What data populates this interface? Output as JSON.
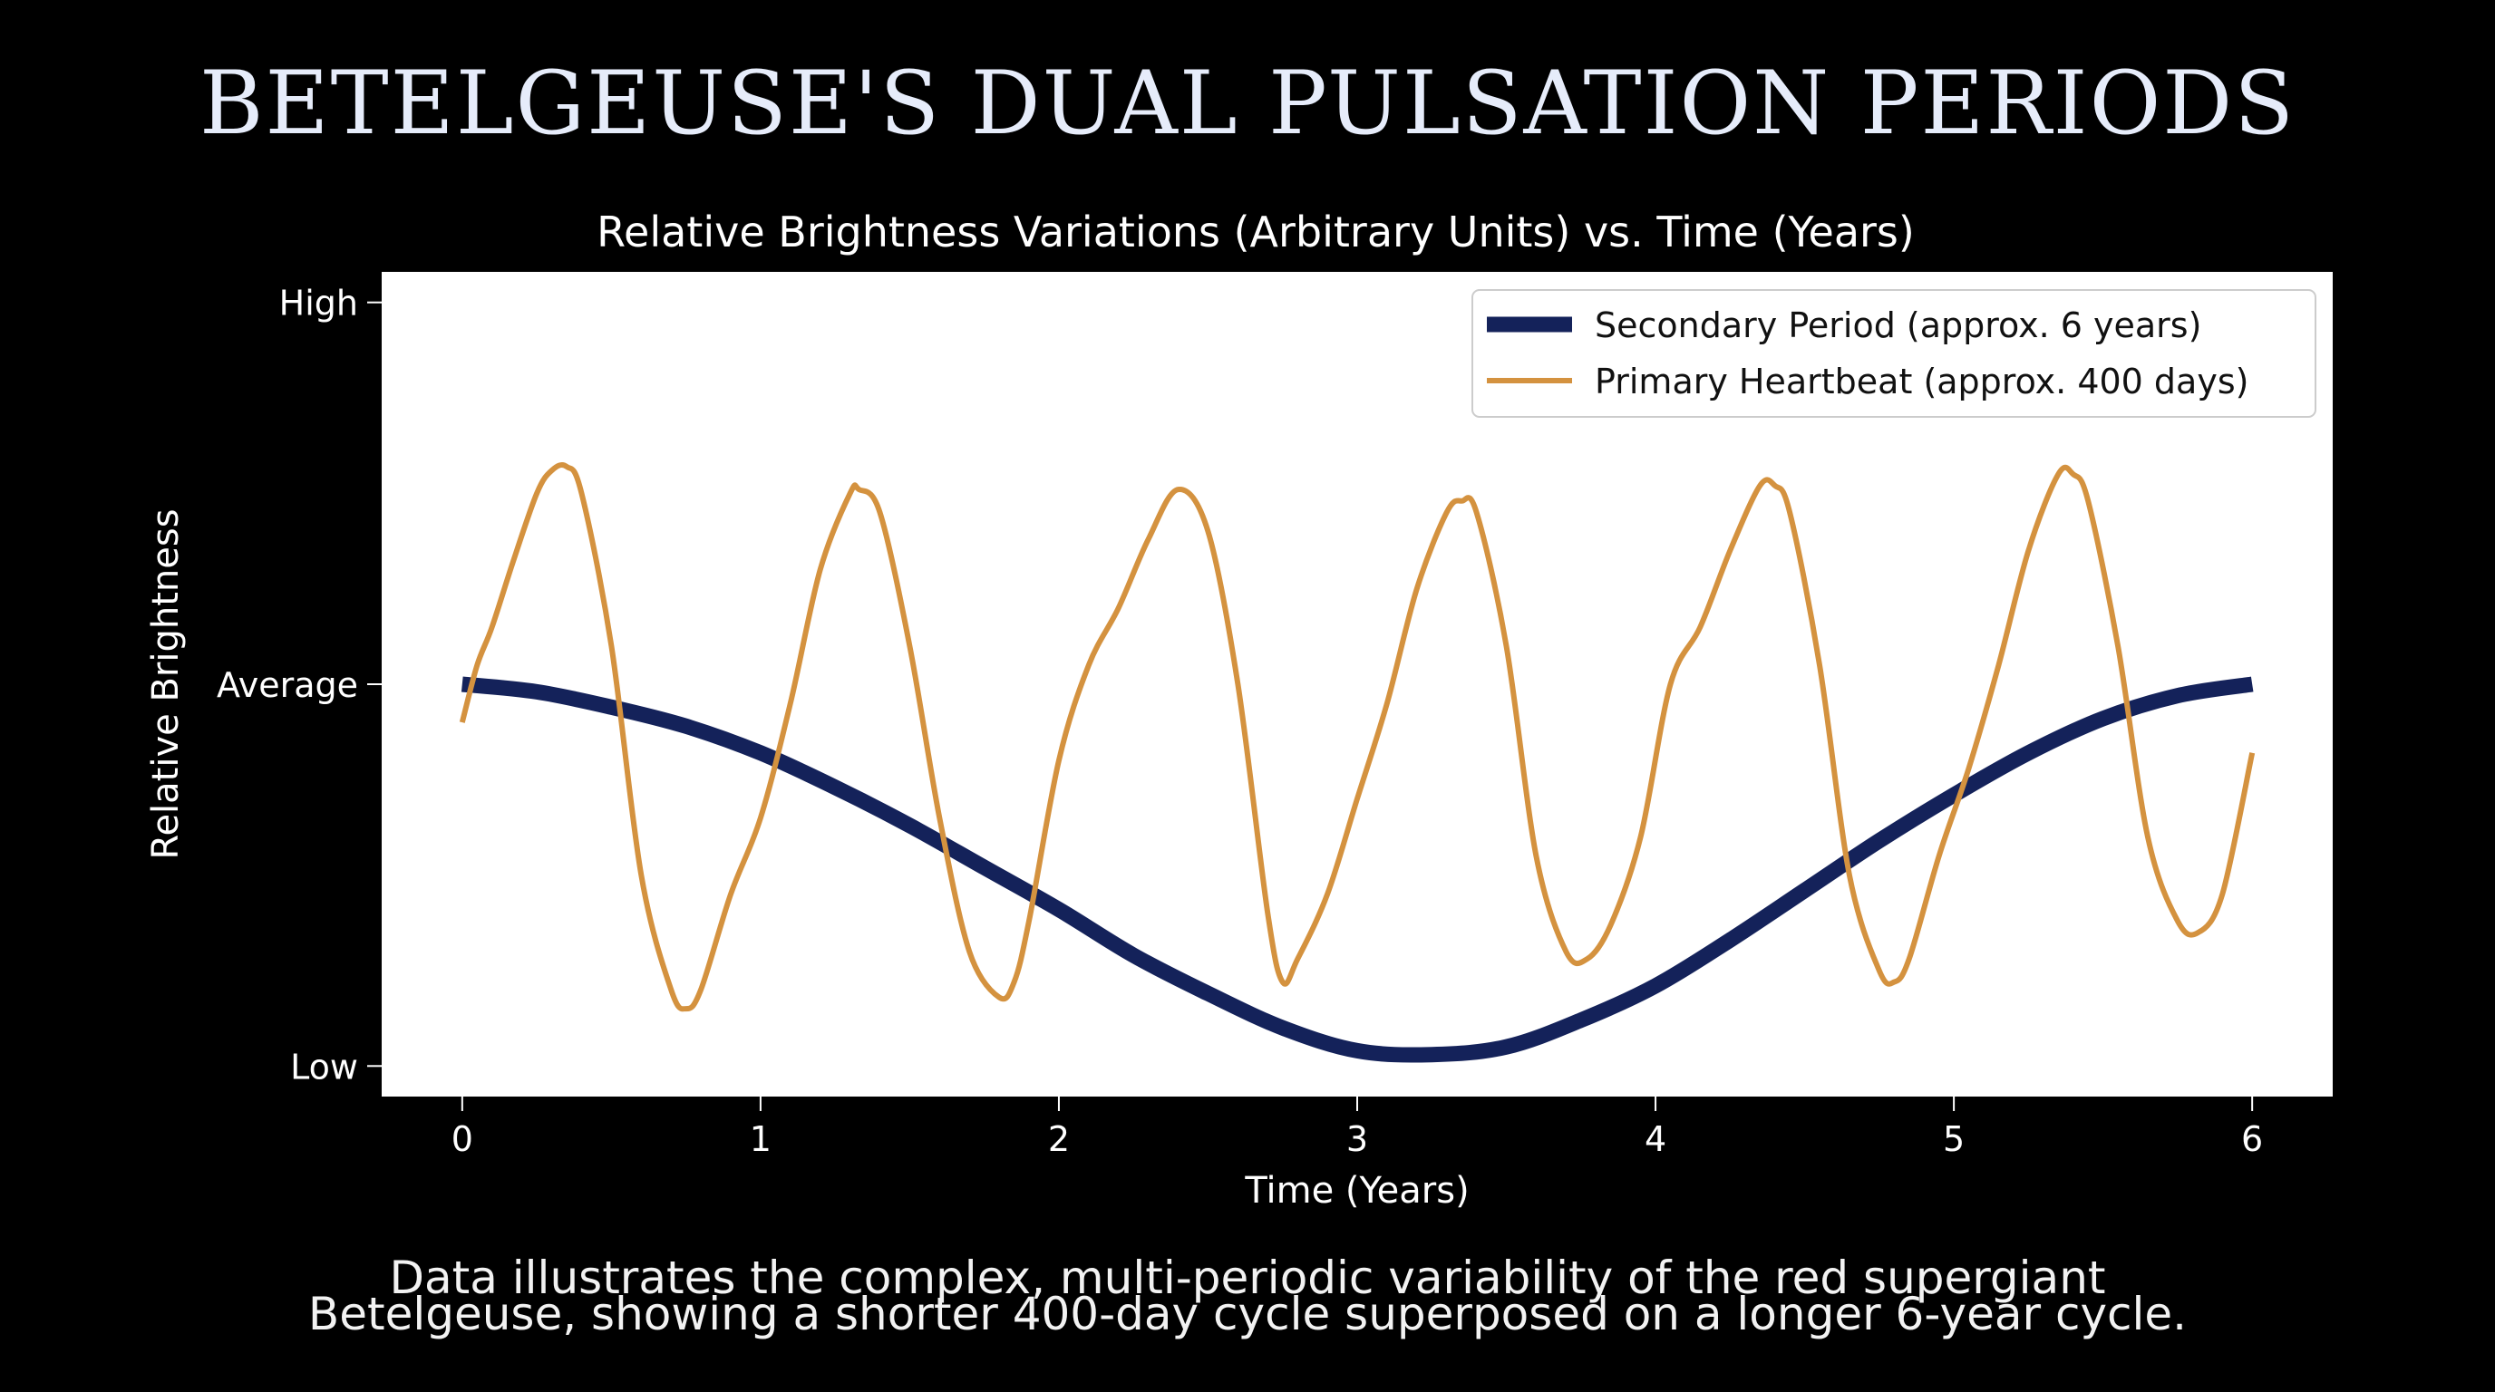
{
  "title": "BETELGEUSE'S DUAL PULSATION PERIODS",
  "caption": {
    "line1": "Data illustrates the complex, multi-periodic variability of the red supergiant",
    "line2": "Betelgeuse, showing a shorter 400-day cycle superposed on a longer 6-year cycle."
  },
  "chart_data": {
    "type": "line",
    "title": "Relative Brightness Variations (Arbitrary Units) vs. Time (Years)",
    "xlabel": "Time (Years)",
    "ylabel": "Relative Brightness",
    "xlim": [
      -0.27,
      6.27
    ],
    "ylim": [
      -1.08,
      1.08
    ],
    "x_ticks": [
      0,
      1,
      2,
      3,
      4,
      5,
      6
    ],
    "y_ticks": [
      {
        "value": -1,
        "label": "Low"
      },
      {
        "value": 0,
        "label": "Average"
      },
      {
        "value": 1,
        "label": "High"
      }
    ],
    "grid": false,
    "legend_position": "top-right",
    "series": [
      {
        "name": "Secondary Period (approx. 6 years)",
        "color": "#14225a",
        "line_width": "thick",
        "x": [
          0,
          0.25,
          0.5,
          0.75,
          1.0,
          1.25,
          1.5,
          1.75,
          2.0,
          2.25,
          2.5,
          2.75,
          3.0,
          3.25,
          3.5,
          3.75,
          4.0,
          4.25,
          4.5,
          4.75,
          5.0,
          5.25,
          5.5,
          5.75,
          6.0
        ],
        "y": [
          0,
          -0.02,
          -0.06,
          -0.11,
          -0.18,
          -0.27,
          -0.37,
          -0.48,
          -0.59,
          -0.71,
          -0.81,
          -0.9,
          -0.96,
          -0.97,
          -0.95,
          -0.88,
          -0.79,
          -0.67,
          -0.54,
          -0.41,
          -0.29,
          -0.18,
          -0.09,
          -0.03,
          0
        ]
      },
      {
        "name": "Primary Heartbeat (approx. 400 days)",
        "color": "#d4923f",
        "line_width": "normal",
        "x": [
          0,
          0.05,
          0.1,
          0.17,
          0.25,
          0.3,
          0.35,
          0.4,
          0.5,
          0.6,
          0.7,
          0.75,
          0.8,
          0.9,
          1.0,
          1.1,
          1.2,
          1.3,
          1.33,
          1.4,
          1.5,
          1.6,
          1.7,
          1.8,
          1.85,
          1.9,
          2.0,
          2.1,
          2.2,
          2.3,
          2.4,
          2.5,
          2.6,
          2.7,
          2.75,
          2.8,
          2.9,
          3.0,
          3.1,
          3.2,
          3.3,
          3.35,
          3.4,
          3.5,
          3.6,
          3.7,
          3.77,
          3.85,
          3.95,
          4.05,
          4.15,
          4.25,
          4.35,
          4.4,
          4.45,
          4.55,
          4.65,
          4.75,
          4.8,
          4.85,
          4.95,
          5.05,
          5.15,
          5.25,
          5.35,
          5.4,
          5.45,
          5.55,
          5.65,
          5.75,
          5.82,
          5.9,
          6.0
        ],
        "y": [
          -0.1,
          0.05,
          0.15,
          0.32,
          0.5,
          0.56,
          0.57,
          0.5,
          0.1,
          -0.5,
          -0.8,
          -0.85,
          -0.8,
          -0.55,
          -0.35,
          -0.05,
          0.3,
          0.5,
          0.51,
          0.45,
          0.1,
          -0.35,
          -0.7,
          -0.82,
          -0.78,
          -0.62,
          -0.2,
          0.05,
          0.2,
          0.38,
          0.51,
          0.4,
          0.0,
          -0.6,
          -0.78,
          -0.72,
          -0.55,
          -0.3,
          -0.05,
          0.25,
          0.45,
          0.48,
          0.45,
          0.1,
          -0.45,
          -0.7,
          -0.72,
          -0.63,
          -0.4,
          0.0,
          0.15,
          0.35,
          0.52,
          0.52,
          0.45,
          0.05,
          -0.5,
          -0.75,
          -0.78,
          -0.72,
          -0.45,
          -0.22,
          0.05,
          0.35,
          0.55,
          0.55,
          0.48,
          0.1,
          -0.4,
          -0.62,
          -0.65,
          -0.55,
          -0.18
        ]
      }
    ]
  }
}
